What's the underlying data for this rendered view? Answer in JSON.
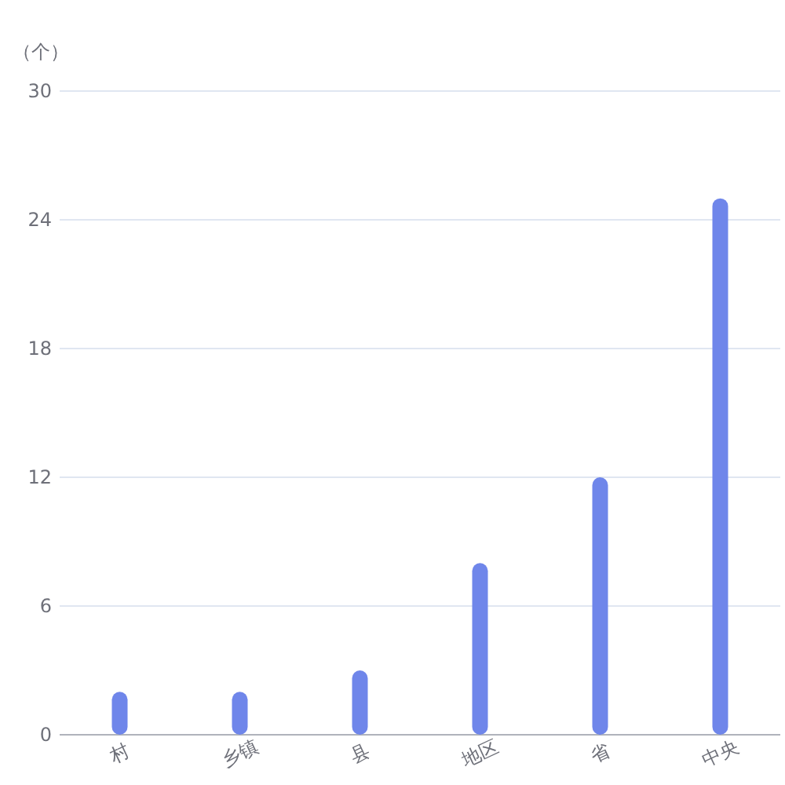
{
  "chart_data": {
    "type": "bar",
    "ylabel": "（个）",
    "categories": [
      "村",
      "乡镇",
      "县",
      "地区",
      "省",
      "中央"
    ],
    "values": [
      2,
      2,
      3,
      8,
      12,
      25
    ],
    "color": "#6f86ea",
    "ylim": [
      0,
      30
    ],
    "yticks": [
      0,
      6,
      12,
      18,
      24,
      30
    ],
    "grid": "y"
  }
}
